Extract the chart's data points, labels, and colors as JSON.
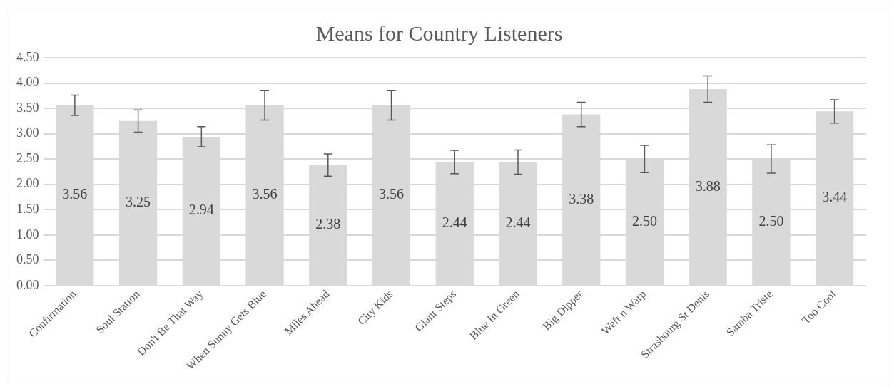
{
  "chart_data": {
    "type": "bar",
    "title": "Means for Country Listeners",
    "categories": [
      "Confirmation",
      "Soul Station",
      "Don't Be That Way",
      "When Sunny Gets Blue",
      "Miles Ahead",
      "City Kids",
      "Giant Steps",
      "Blue In Green",
      "Big Dipper",
      "Weft n Warp",
      "Strasbourg St Denis",
      "Samba Triste",
      "Too Cool"
    ],
    "values": [
      3.56,
      3.25,
      2.94,
      3.56,
      2.38,
      3.56,
      2.44,
      2.44,
      3.38,
      2.5,
      3.88,
      2.5,
      3.44
    ],
    "errors": [
      0.2,
      0.22,
      0.2,
      0.29,
      0.22,
      0.29,
      0.23,
      0.24,
      0.24,
      0.27,
      0.26,
      0.28,
      0.23
    ],
    "color": "#d9d9d9",
    "ylim": [
      0,
      4.5
    ],
    "yticks": [
      {
        "value": 0,
        "label": "0.00"
      },
      {
        "value": 0.5,
        "label": "0.50"
      },
      {
        "value": 1,
        "label": "1.00"
      },
      {
        "value": 1.5,
        "label": "1.50"
      },
      {
        "value": 2,
        "label": "2.00"
      },
      {
        "value": 2.5,
        "label": "2.50"
      },
      {
        "value": 3,
        "label": "3.00"
      },
      {
        "value": 3.5,
        "label": "3.50"
      },
      {
        "value": 4,
        "label": "4.00"
      },
      {
        "value": 4.5,
        "label": "4.50"
      }
    ],
    "grid": "y",
    "legend": false,
    "value_labels": [
      "3.56",
      "3.25",
      "2.94",
      "3.56",
      "2.38",
      "3.56",
      "2.44",
      "2.44",
      "3.38",
      "2.50",
      "3.88",
      "2.50",
      "3.44"
    ]
  }
}
